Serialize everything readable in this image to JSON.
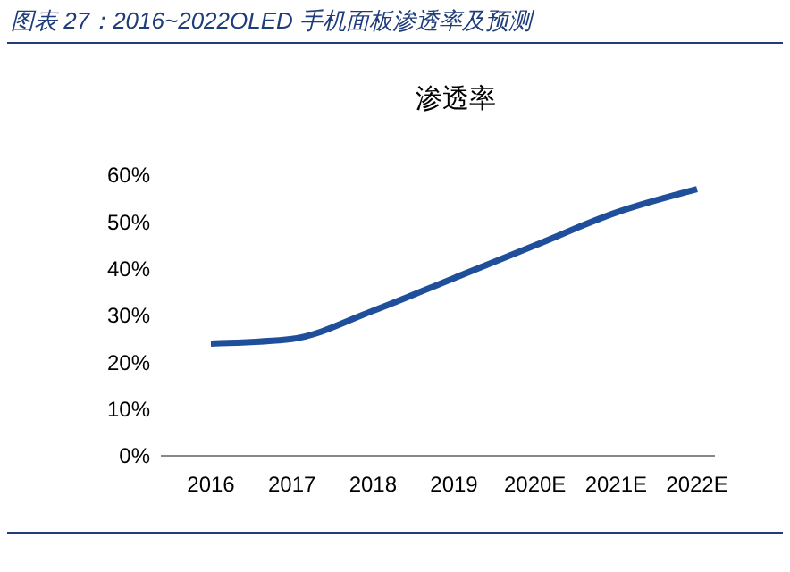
{
  "chart_data": {
    "type": "line",
    "title": "图表 27：2016~2022OLED 手机面板渗透率及预测",
    "subtitle": "渗透率",
    "categories": [
      "2016",
      "2017",
      "2018",
      "2019",
      "2020E",
      "2021E",
      "2022E"
    ],
    "series": [
      {
        "color": "#1f4e9a",
        "values": [
          24,
          25,
          31,
          38,
          45,
          52,
          57
        ]
      }
    ],
    "ylim": [
      0,
      60
    ],
    "yticks": [
      {
        "value": 0,
        "label": "0%"
      },
      {
        "value": 10,
        "label": "10%"
      },
      {
        "value": 20,
        "label": "20%"
      },
      {
        "value": 30,
        "label": "30%"
      },
      {
        "value": 40,
        "label": "40%"
      },
      {
        "value": 50,
        "label": "50%"
      },
      {
        "value": 60,
        "label": "60%"
      }
    ],
    "grid": false,
    "marker": "none",
    "line_style": "solid"
  }
}
